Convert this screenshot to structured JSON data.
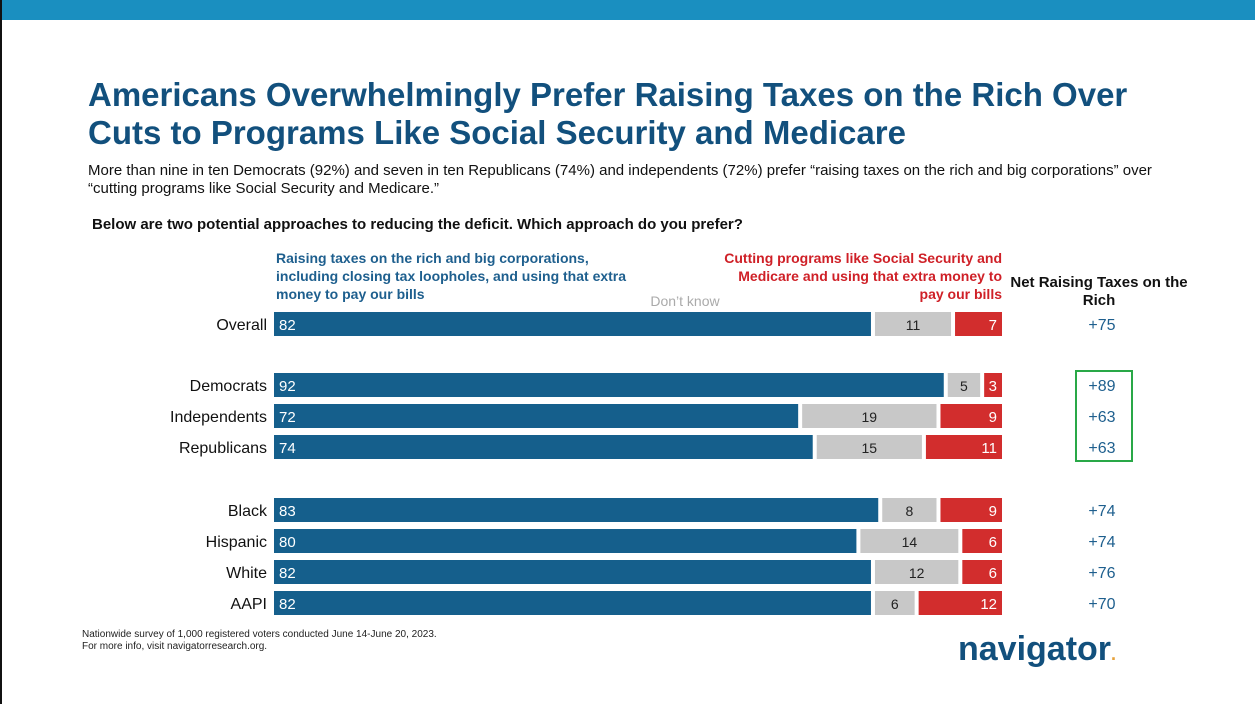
{
  "header": {
    "title": "Americans Overwhelmingly Prefer Raising Taxes on the Rich Over Cuts to Programs Like Social Security and Medicare",
    "subtitle": "More than nine in ten Democrats (92%) and seven in ten Republicans (74%) and independents (72%) prefer “raising taxes on the rich and big corporations” over “cutting programs like Social Security and Medicare.”",
    "question": "Below are two potential approaches to reducing the deficit. Which approach do you prefer?"
  },
  "legend": {
    "raising": "Raising taxes on the rich and big corporations, including closing tax loopholes, and using that extra money to pay our bills",
    "dont_know": "Don’t know",
    "cutting": "Cutting programs like Social Security and Medicare and using that extra money to pay our bills",
    "net": "Net Raising Taxes on the Rich"
  },
  "colors": {
    "raise": "#155f8c",
    "dont_know": "#c8c8c8",
    "cut": "#d22d2d",
    "title": "#12507d",
    "top_bar": "#1a8fc0",
    "highlight": "#29a847"
  },
  "chart_data": {
    "type": "bar",
    "orientation": "horizontal",
    "stacked": true,
    "categories": [
      "Overall",
      "Democrats",
      "Independents",
      "Republicans",
      "Black",
      "Hispanic",
      "White",
      "AAPI"
    ],
    "series": [
      {
        "name": "Raising taxes on the rich and big corporations, including closing tax loopholes, and using that extra money to pay our bills",
        "values": [
          82,
          92,
          72,
          74,
          83,
          80,
          82,
          82
        ]
      },
      {
        "name": "Don’t know",
        "values": [
          11,
          5,
          19,
          15,
          8,
          14,
          12,
          6
        ]
      },
      {
        "name": "Cutting programs like Social Security and Medicare and using that extra money to pay our bills",
        "values": [
          7,
          3,
          9,
          11,
          9,
          6,
          6,
          12
        ]
      }
    ],
    "net": [
      "+75",
      "+89",
      "+63",
      "+63",
      "+74",
      "+74",
      "+76",
      "+70"
    ],
    "highlighted_net": [
      "Democrats",
      "Independents",
      "Republicans"
    ],
    "groups": [
      [
        "Overall"
      ],
      [
        "Democrats",
        "Independents",
        "Republicans"
      ],
      [
        "Black",
        "Hispanic",
        "White",
        "AAPI"
      ]
    ]
  },
  "footer": {
    "source_line1": "Nationwide survey of 1,000 registered voters conducted June 14-June 20, 2023.",
    "source_line2": "For more info, visit navigatorresearch.org.",
    "logo": "navigator",
    "logo_dot": "."
  }
}
